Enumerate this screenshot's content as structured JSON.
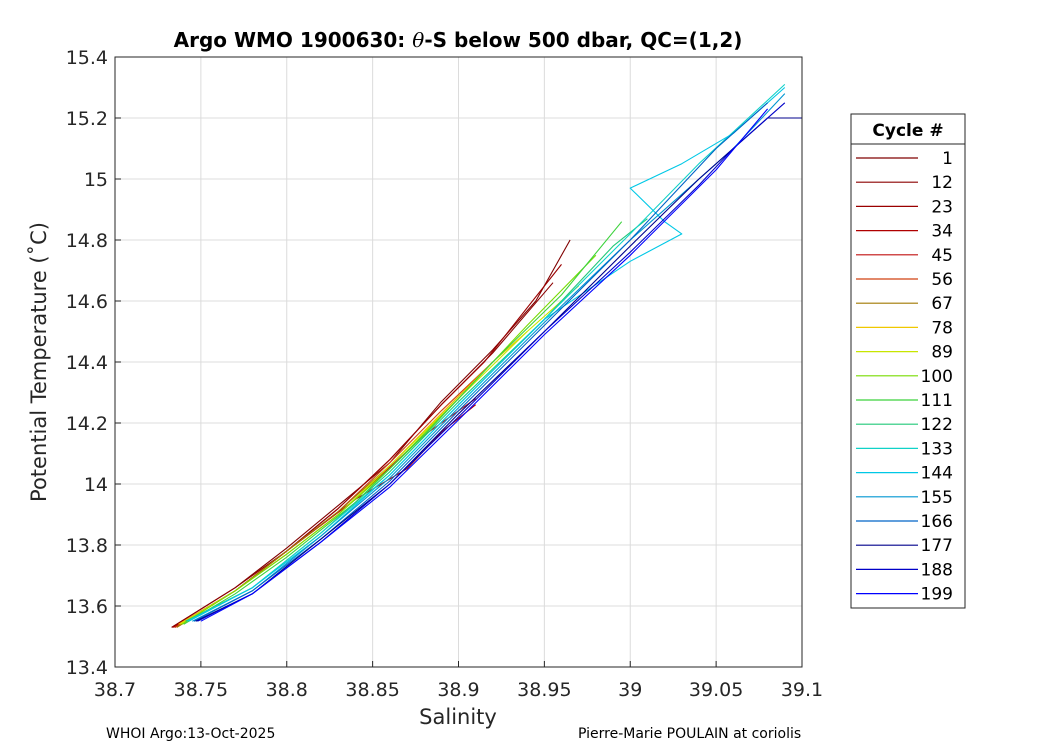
{
  "chart_data": {
    "type": "line",
    "title_prefix": "Argo WMO 1900630: ",
    "title_theta": "θ",
    "title_suffix": "-S below 500 dbar,  QC=(1,2)",
    "xlabel": "Salinity",
    "ylabel": "Potential Temperature (˚C)",
    "xlim": [
      38.7,
      39.1
    ],
    "ylim": [
      13.4,
      15.4
    ],
    "xticks": [
      "38.7",
      "38.75",
      "38.8",
      "38.85",
      "38.9",
      "38.95",
      "39",
      "39.05",
      "39.1"
    ],
    "yticks": [
      "13.4",
      "13.6",
      "13.8",
      "14",
      "14.2",
      "14.4",
      "14.6",
      "14.8",
      "15",
      "15.2",
      "15.4"
    ],
    "grid": true,
    "legend_title": "Cycle #",
    "legend_position": "right",
    "series": [
      {
        "name": "1",
        "color": "#800000",
        "points": [
          [
            38.733,
            13.53
          ],
          [
            38.77,
            13.66
          ],
          [
            38.8,
            13.79
          ],
          [
            38.83,
            13.93
          ],
          [
            38.86,
            14.07
          ],
          [
            38.89,
            14.27
          ],
          [
            38.92,
            14.44
          ],
          [
            38.945,
            14.6
          ],
          [
            38.965,
            14.8
          ]
        ]
      },
      {
        "name": "12",
        "color": "#8b0000",
        "points": [
          [
            38.733,
            13.53
          ],
          [
            38.77,
            13.66
          ],
          [
            38.8,
            13.78
          ],
          [
            38.83,
            13.92
          ],
          [
            38.86,
            14.08
          ],
          [
            38.89,
            14.26
          ],
          [
            38.92,
            14.43
          ],
          [
            38.955,
            14.66
          ]
        ]
      },
      {
        "name": "23",
        "color": "#9a0000",
        "points": [
          [
            38.734,
            13.53
          ],
          [
            38.77,
            13.65
          ],
          [
            38.8,
            13.78
          ],
          [
            38.83,
            13.92
          ],
          [
            38.86,
            14.08
          ],
          [
            38.89,
            14.26
          ],
          [
            38.915,
            14.4
          ],
          [
            38.96,
            14.72
          ]
        ]
      },
      {
        "name": "34",
        "color": "#b00000",
        "points": [
          [
            38.734,
            13.53
          ],
          [
            38.77,
            13.65
          ],
          [
            38.8,
            13.78
          ],
          [
            38.84,
            13.95
          ],
          [
            38.87,
            14.05
          ],
          [
            38.89,
            14.17
          ],
          [
            38.91,
            14.26
          ]
        ]
      },
      {
        "name": "45",
        "color": "#c01010",
        "points": [
          [
            38.735,
            13.53
          ],
          [
            38.77,
            13.65
          ],
          [
            38.8,
            13.78
          ],
          [
            38.84,
            13.95
          ],
          [
            38.88,
            14.16
          ],
          [
            38.91,
            14.28
          ]
        ]
      },
      {
        "name": "56",
        "color": "#d04010",
        "points": [
          [
            38.735,
            13.53
          ],
          [
            38.77,
            13.65
          ],
          [
            38.8,
            13.78
          ],
          [
            38.83,
            13.91
          ],
          [
            38.86,
            14.07
          ],
          [
            38.89,
            14.24
          ],
          [
            38.92,
            14.4
          ]
        ]
      },
      {
        "name": "67",
        "color": "#a07800",
        "points": [
          [
            38.736,
            13.53
          ],
          [
            38.77,
            13.65
          ],
          [
            38.8,
            13.78
          ],
          [
            38.83,
            13.91
          ],
          [
            38.86,
            14.06
          ],
          [
            38.89,
            14.23
          ],
          [
            38.92,
            14.4
          ]
        ]
      },
      {
        "name": "78",
        "color": "#f0c800",
        "points": [
          [
            38.737,
            13.54
          ],
          [
            38.77,
            13.65
          ],
          [
            38.8,
            13.77
          ],
          [
            38.83,
            13.9
          ],
          [
            38.86,
            14.06
          ],
          [
            38.89,
            14.23
          ],
          [
            38.92,
            14.4
          ],
          [
            38.94,
            14.5
          ]
        ]
      },
      {
        "name": "89",
        "color": "#c8e600",
        "points": [
          [
            38.738,
            13.54
          ],
          [
            38.77,
            13.65
          ],
          [
            38.8,
            13.77
          ],
          [
            38.83,
            13.9
          ],
          [
            38.86,
            14.06
          ],
          [
            38.9,
            14.28
          ],
          [
            38.94,
            14.5
          ],
          [
            38.97,
            14.65
          ]
        ]
      },
      {
        "name": "100",
        "color": "#78dc00",
        "points": [
          [
            38.739,
            13.54
          ],
          [
            38.77,
            13.65
          ],
          [
            38.8,
            13.77
          ],
          [
            38.83,
            13.9
          ],
          [
            38.86,
            14.05
          ],
          [
            38.9,
            14.28
          ],
          [
            38.94,
            14.52
          ],
          [
            38.98,
            14.75
          ]
        ]
      },
      {
        "name": "111",
        "color": "#3cd23c",
        "points": [
          [
            38.74,
            13.54
          ],
          [
            38.77,
            13.64
          ],
          [
            38.8,
            13.76
          ],
          [
            38.84,
            13.94
          ],
          [
            38.88,
            14.16
          ],
          [
            38.92,
            14.4
          ],
          [
            38.96,
            14.62
          ],
          [
            38.995,
            14.86
          ]
        ]
      },
      {
        "name": "122",
        "color": "#20c878",
        "points": [
          [
            38.741,
            13.55
          ],
          [
            38.78,
            13.66
          ],
          [
            38.82,
            13.84
          ],
          [
            38.86,
            14.04
          ],
          [
            38.9,
            14.27
          ],
          [
            38.95,
            14.54
          ],
          [
            38.99,
            14.78
          ],
          [
            39.01,
            14.87
          ]
        ]
      },
      {
        "name": "133",
        "color": "#10d2c8",
        "points": [
          [
            38.742,
            13.55
          ],
          [
            38.78,
            13.66
          ],
          [
            38.82,
            13.84
          ],
          [
            38.86,
            14.03
          ],
          [
            38.9,
            14.26
          ],
          [
            38.95,
            14.54
          ],
          [
            39.0,
            14.82
          ],
          [
            39.04,
            15.05
          ],
          [
            39.09,
            15.31
          ]
        ]
      },
      {
        "name": "144",
        "color": "#00c8e6",
        "points": [
          [
            38.743,
            13.55
          ],
          [
            38.78,
            13.66
          ],
          [
            38.82,
            13.83
          ],
          [
            38.86,
            14.03
          ],
          [
            38.9,
            14.26
          ],
          [
            38.95,
            14.54
          ],
          [
            39.0,
            14.73
          ],
          [
            39.03,
            14.82
          ],
          [
            39.02,
            14.86
          ],
          [
            39.0,
            14.97
          ],
          [
            39.03,
            15.05
          ],
          [
            39.06,
            15.15
          ],
          [
            39.09,
            15.3
          ]
        ]
      },
      {
        "name": "155",
        "color": "#0096d2",
        "points": [
          [
            38.745,
            13.55
          ],
          [
            38.78,
            13.65
          ],
          [
            38.82,
            13.83
          ],
          [
            38.86,
            14.02
          ],
          [
            38.9,
            14.25
          ],
          [
            38.95,
            14.53
          ],
          [
            39.0,
            14.8
          ],
          [
            39.03,
            14.95
          ],
          [
            39.06,
            15.1
          ],
          [
            39.09,
            15.28
          ]
        ]
      },
      {
        "name": "166",
        "color": "#0064c8",
        "points": [
          [
            38.746,
            13.55
          ],
          [
            38.78,
            13.65
          ],
          [
            38.82,
            13.82
          ],
          [
            38.86,
            14.01
          ],
          [
            38.9,
            14.24
          ],
          [
            38.95,
            14.52
          ],
          [
            39.0,
            14.8
          ],
          [
            39.02,
            14.92
          ],
          [
            39.05,
            15.1
          ],
          [
            39.08,
            15.25
          ]
        ]
      },
      {
        "name": "177",
        "color": "#00008c",
        "points": [
          [
            38.747,
            13.55
          ],
          [
            38.78,
            13.64
          ],
          [
            38.82,
            13.82
          ],
          [
            38.86,
            14.0
          ],
          [
            38.9,
            14.23
          ],
          [
            38.95,
            14.5
          ],
          [
            39.0,
            14.78
          ],
          [
            39.04,
            15.0
          ],
          [
            39.08,
            15.2
          ],
          [
            39.1,
            15.2
          ]
        ]
      },
      {
        "name": "188",
        "color": "#0000c8",
        "points": [
          [
            38.748,
            13.55
          ],
          [
            38.78,
            13.64
          ],
          [
            38.82,
            13.81
          ],
          [
            38.86,
            14.0
          ],
          [
            38.9,
            14.22
          ],
          [
            38.95,
            14.5
          ],
          [
            39.0,
            14.76
          ],
          [
            39.04,
            14.98
          ],
          [
            39.06,
            15.1
          ],
          [
            39.09,
            15.25
          ]
        ]
      },
      {
        "name": "199",
        "color": "#0000ff",
        "points": [
          [
            38.75,
            13.55
          ],
          [
            38.78,
            13.64
          ],
          [
            38.82,
            13.81
          ],
          [
            38.86,
            13.99
          ],
          [
            38.9,
            14.21
          ],
          [
            38.95,
            14.49
          ],
          [
            39.0,
            14.75
          ],
          [
            39.05,
            15.03
          ],
          [
            39.08,
            15.23
          ]
        ]
      }
    ]
  },
  "footer": {
    "left": "WHOI Argo:13-Oct-2025",
    "right": "Pierre-Marie POULAIN at coriolis"
  }
}
